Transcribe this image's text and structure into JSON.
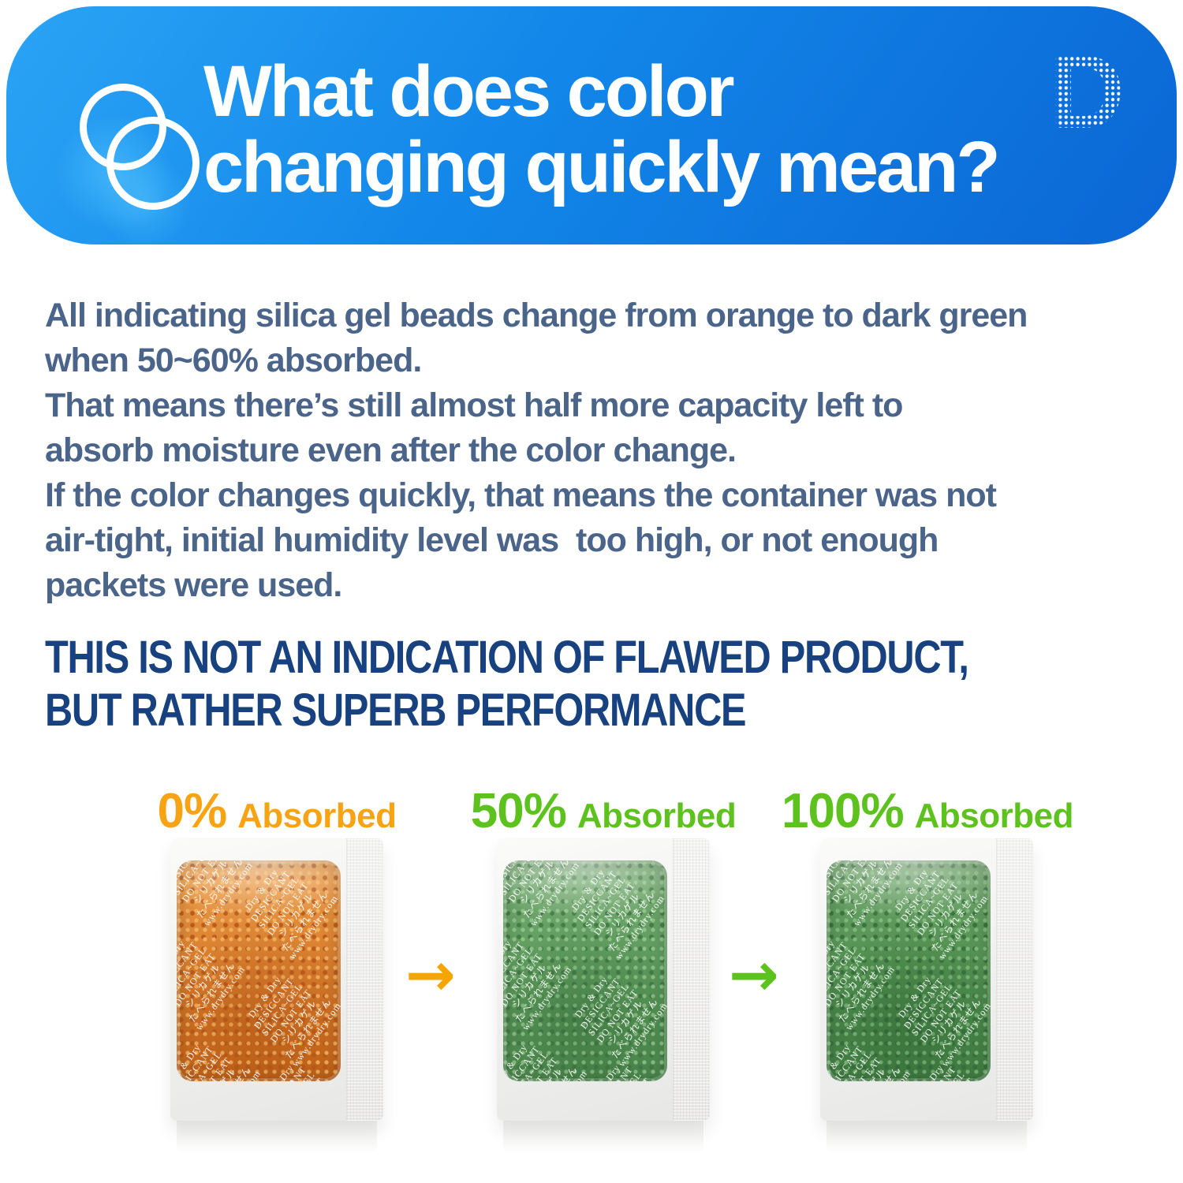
{
  "header": {
    "title_line1": "What does color",
    "title_line2": "changing quickly mean?",
    "icon": "overlapping-circles-icon",
    "logo": "halftone-dotted-D",
    "bg_gradient": [
      "#2aa4f5",
      "#0b66d4"
    ],
    "text_color": "#ffffff"
  },
  "body": {
    "text_color": "#4b6489",
    "lines": [
      "All indicating silica gel beads change from orange to dark green",
      "when 50~60% absorbed.",
      "That means there’s still almost half more capacity left to",
      "absorb moisture even after the color change.",
      "If the color changes quickly, that means the container was not",
      "air-tight, initial humidity level was  too high, or not enough",
      "packets were used."
    ]
  },
  "emphasis": {
    "color": "#17417f",
    "line1": "THIS IS NOT AN INDICATION OF FLAWED PRODUCT,",
    "line2": "BUT RATHER SUPERB PERFORMANCE"
  },
  "sequence": {
    "arrow_glyph": "→",
    "arrow_colors": [
      "#f5a500",
      "#5ec21e"
    ],
    "packet_print_lines": [
      "Dry & Dry",
      "DESICCANT",
      "SILICA~GEL",
      "DO NOT EAT",
      "シリカゲル",
      "たべられません",
      "www.drydry.com"
    ],
    "stages": [
      {
        "percent": "0%",
        "word": "Absorbed",
        "label_color": "#f8a312",
        "bead_state": "orange",
        "colors": {
          "base_light": "#eda04b",
          "base": "#d97f2f",
          "base_dark": "#c26318",
          "bead_light": "#f2b05e",
          "bead_dark": "#bb5c1d",
          "deep": "rgba(150,60,10,0.28)"
        }
      },
      {
        "percent": "50%",
        "word": "Absorbed",
        "label_color": "#5ec21e",
        "bead_state": "green",
        "colors": {
          "base_light": "#79ab74",
          "base": "#5f9c5e",
          "base_dark": "#4d8a4e",
          "bead_light": "#8ec389",
          "bead_dark": "#457d48",
          "deep": "rgba(30,80,35,0.30)"
        }
      },
      {
        "percent": "100%",
        "word": "Absorbed",
        "label_color": "#5ec21e",
        "bead_state": "dark-green",
        "colors": {
          "base_light": "#6da268",
          "base": "#549353",
          "base_dark": "#428044",
          "bead_light": "#7fb87b",
          "bead_dark": "#3b7340",
          "deep": "rgba(25,75,30,0.32)"
        }
      }
    ]
  }
}
